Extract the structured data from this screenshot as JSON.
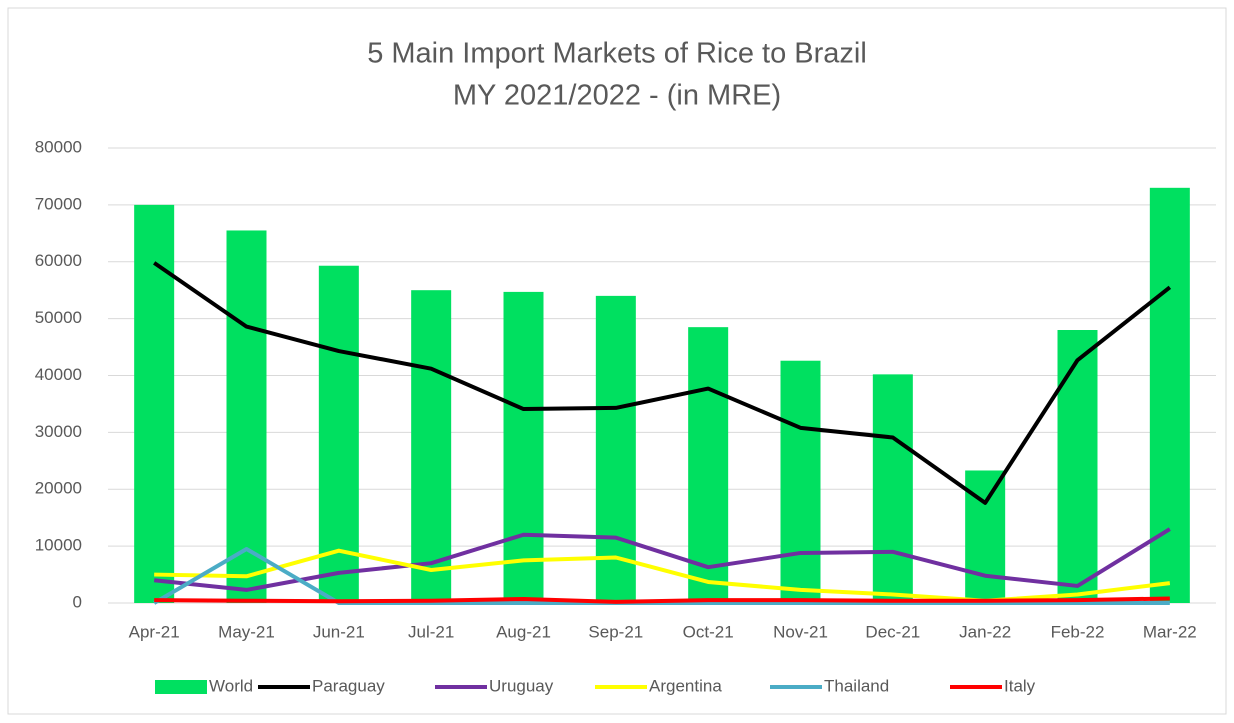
{
  "chart_data": {
    "type": "combo",
    "title": "5 Main Import Markets of Rice to Brazil",
    "subtitle": "MY 2021/2022 - (in MRE)",
    "categories": [
      "Apr-21",
      "May-21",
      "Jun-21",
      "Jul-21",
      "Aug-21",
      "Sep-21",
      "Oct-21",
      "Nov-21",
      "Dec-21",
      "Jan-22",
      "Feb-22",
      "Mar-22"
    ],
    "series": [
      {
        "name": "World",
        "type": "bar",
        "color": "#00e060",
        "values": [
          70000,
          65500,
          59300,
          55000,
          54700,
          54000,
          48500,
          42600,
          40200,
          23300,
          48000,
          73000
        ]
      },
      {
        "name": "Paraguay",
        "type": "line",
        "color": "#000000",
        "values": [
          59800,
          48600,
          44300,
          41200,
          34100,
          34300,
          37700,
          30800,
          29100,
          17600,
          42700,
          55500
        ]
      },
      {
        "name": "Uruguay",
        "type": "line",
        "color": "#7030a0",
        "values": [
          4000,
          2300,
          5300,
          7000,
          12000,
          11500,
          6300,
          8800,
          9000,
          4800,
          3000,
          13000
        ]
      },
      {
        "name": "Argentina",
        "type": "line",
        "color": "#ffff00",
        "values": [
          5000,
          4700,
          9200,
          5800,
          7500,
          8000,
          3700,
          2300,
          1500,
          400,
          1500,
          3500
        ]
      },
      {
        "name": "Thailand",
        "type": "line",
        "color": "#4bacc6",
        "values": [
          0,
          9500,
          0,
          0,
          0,
          0,
          0,
          0,
          0,
          0,
          0,
          0
        ]
      },
      {
        "name": "Italy",
        "type": "line",
        "color": "#ff0000",
        "values": [
          500,
          400,
          300,
          400,
          700,
          200,
          500,
          500,
          400,
          400,
          500,
          800
        ]
      }
    ],
    "ylim": [
      0,
      80000
    ],
    "yticks": [
      0,
      10000,
      20000,
      30000,
      40000,
      50000,
      60000,
      70000,
      80000
    ],
    "grid": true,
    "legend": "bottom"
  }
}
